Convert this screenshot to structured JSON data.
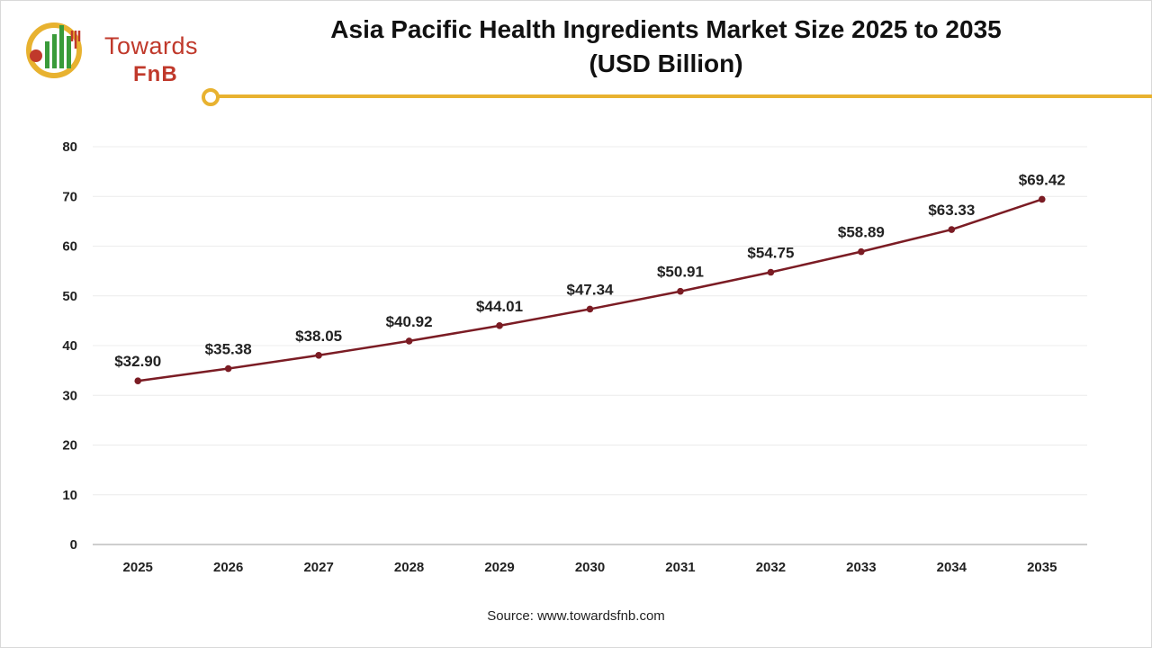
{
  "header": {
    "title": "Asia Pacific Health Ingredients Market Size 2025 to 2035",
    "subtitle": "(USD Billion)"
  },
  "logo": {
    "line1": "Towards",
    "line2": "FnB"
  },
  "footer": {
    "source": "Source: www.towardsfnb.com"
  },
  "colors": {
    "line": "#7b1c24",
    "accent": "#e8b230",
    "grid": "#ececec"
  },
  "chart_data": {
    "type": "line",
    "title": "Asia Pacific Health Ingredients Market Size 2025 to 2035 (USD Billion)",
    "categories": [
      "2025",
      "2026",
      "2027",
      "2028",
      "2029",
      "2030",
      "2031",
      "2032",
      "2033",
      "2034",
      "2035"
    ],
    "values": [
      32.9,
      35.38,
      38.05,
      40.92,
      44.01,
      47.34,
      50.91,
      54.75,
      58.89,
      63.33,
      69.42
    ],
    "data_labels": [
      "$32.90",
      "$35.38",
      "$38.05",
      "$40.92",
      "$44.01",
      "$47.34",
      "$50.91",
      "$54.75",
      "$58.89",
      "$63.33",
      "$69.42"
    ],
    "ylim": [
      0,
      80
    ],
    "yticks": [
      0,
      10,
      20,
      30,
      40,
      50,
      60,
      70,
      80
    ],
    "grid": true,
    "legend": "none"
  }
}
